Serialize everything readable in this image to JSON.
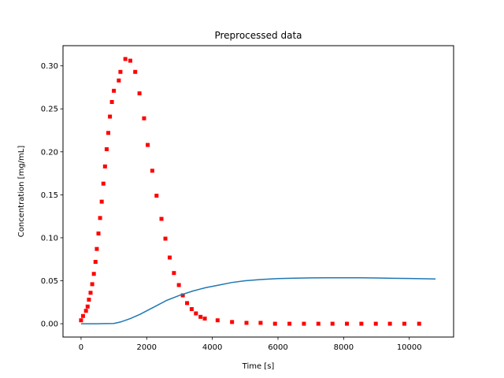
{
  "chart_data": {
    "type": "scatter",
    "title": "Preprocessed data",
    "xlabel": "Time [s]",
    "ylabel": "Concentration [mg/mL]",
    "xlim": [
      -550,
      11350
    ],
    "ylim": [
      -0.0155,
      0.3235
    ],
    "xticks": [
      0,
      2000,
      4000,
      6000,
      8000,
      10000
    ],
    "xtick_labels": [
      "0",
      "2000",
      "4000",
      "6000",
      "8000",
      "10000"
    ],
    "yticks": [
      0.0,
      0.05,
      0.1,
      0.15,
      0.2,
      0.25,
      0.3
    ],
    "ytick_labels": [
      "0.00",
      "0.05",
      "0.10",
      "0.15",
      "0.20",
      "0.25",
      "0.30"
    ],
    "grid": false,
    "legend": "none",
    "series": [
      {
        "kind": "scatter",
        "color": "#ff0000",
        "marker": "square",
        "x": [
          0,
          60,
          150,
          200,
          240,
          290,
          340,
          390,
          440,
          480,
          530,
          580,
          630,
          680,
          730,
          780,
          830,
          880,
          940,
          1000,
          1150,
          1200,
          1350,
          1500,
          1650,
          1780,
          1920,
          2030,
          2170,
          2300,
          2450,
          2570,
          2700,
          2830,
          2980,
          3100,
          3230,
          3370,
          3500,
          3640,
          3770,
          4160,
          4600,
          5040,
          5470,
          5910,
          6350,
          6790,
          7230,
          7660,
          8100,
          8540,
          8980,
          9410,
          9850,
          10300
        ],
        "y": [
          0.004,
          0.009,
          0.015,
          0.02,
          0.028,
          0.036,
          0.046,
          0.058,
          0.072,
          0.087,
          0.105,
          0.123,
          0.142,
          0.163,
          0.183,
          0.203,
          0.222,
          0.241,
          0.258,
          0.271,
          0.283,
          0.293,
          0.308,
          0.306,
          0.293,
          0.268,
          0.239,
          0.208,
          0.178,
          0.149,
          0.122,
          0.099,
          0.077,
          0.059,
          0.045,
          0.033,
          0.024,
          0.017,
          0.012,
          0.008,
          0.006,
          0.004,
          0.002,
          0.001,
          0.001,
          0.0,
          0.0,
          0.0,
          0.0,
          0.0,
          0.0,
          0.0,
          0.0,
          0.0,
          0.0,
          0.0
        ]
      },
      {
        "kind": "line",
        "color": "#1f77b4",
        "x": [
          0,
          500,
          1000,
          1200,
          1500,
          1800,
          2000,
          2300,
          2600,
          3000,
          3400,
          3800,
          4200,
          4600,
          5000,
          5500,
          6000,
          6500,
          7000,
          7500,
          8000,
          8500,
          9000,
          9500,
          10000,
          10500,
          10800
        ],
        "y": [
          0.0,
          0.0,
          0.0003,
          0.002,
          0.006,
          0.011,
          0.015,
          0.021,
          0.027,
          0.033,
          0.038,
          0.042,
          0.045,
          0.048,
          0.05,
          0.0515,
          0.0525,
          0.053,
          0.0533,
          0.0535,
          0.0535,
          0.0534,
          0.0532,
          0.0529,
          0.0526,
          0.0523,
          0.0521
        ]
      }
    ]
  }
}
